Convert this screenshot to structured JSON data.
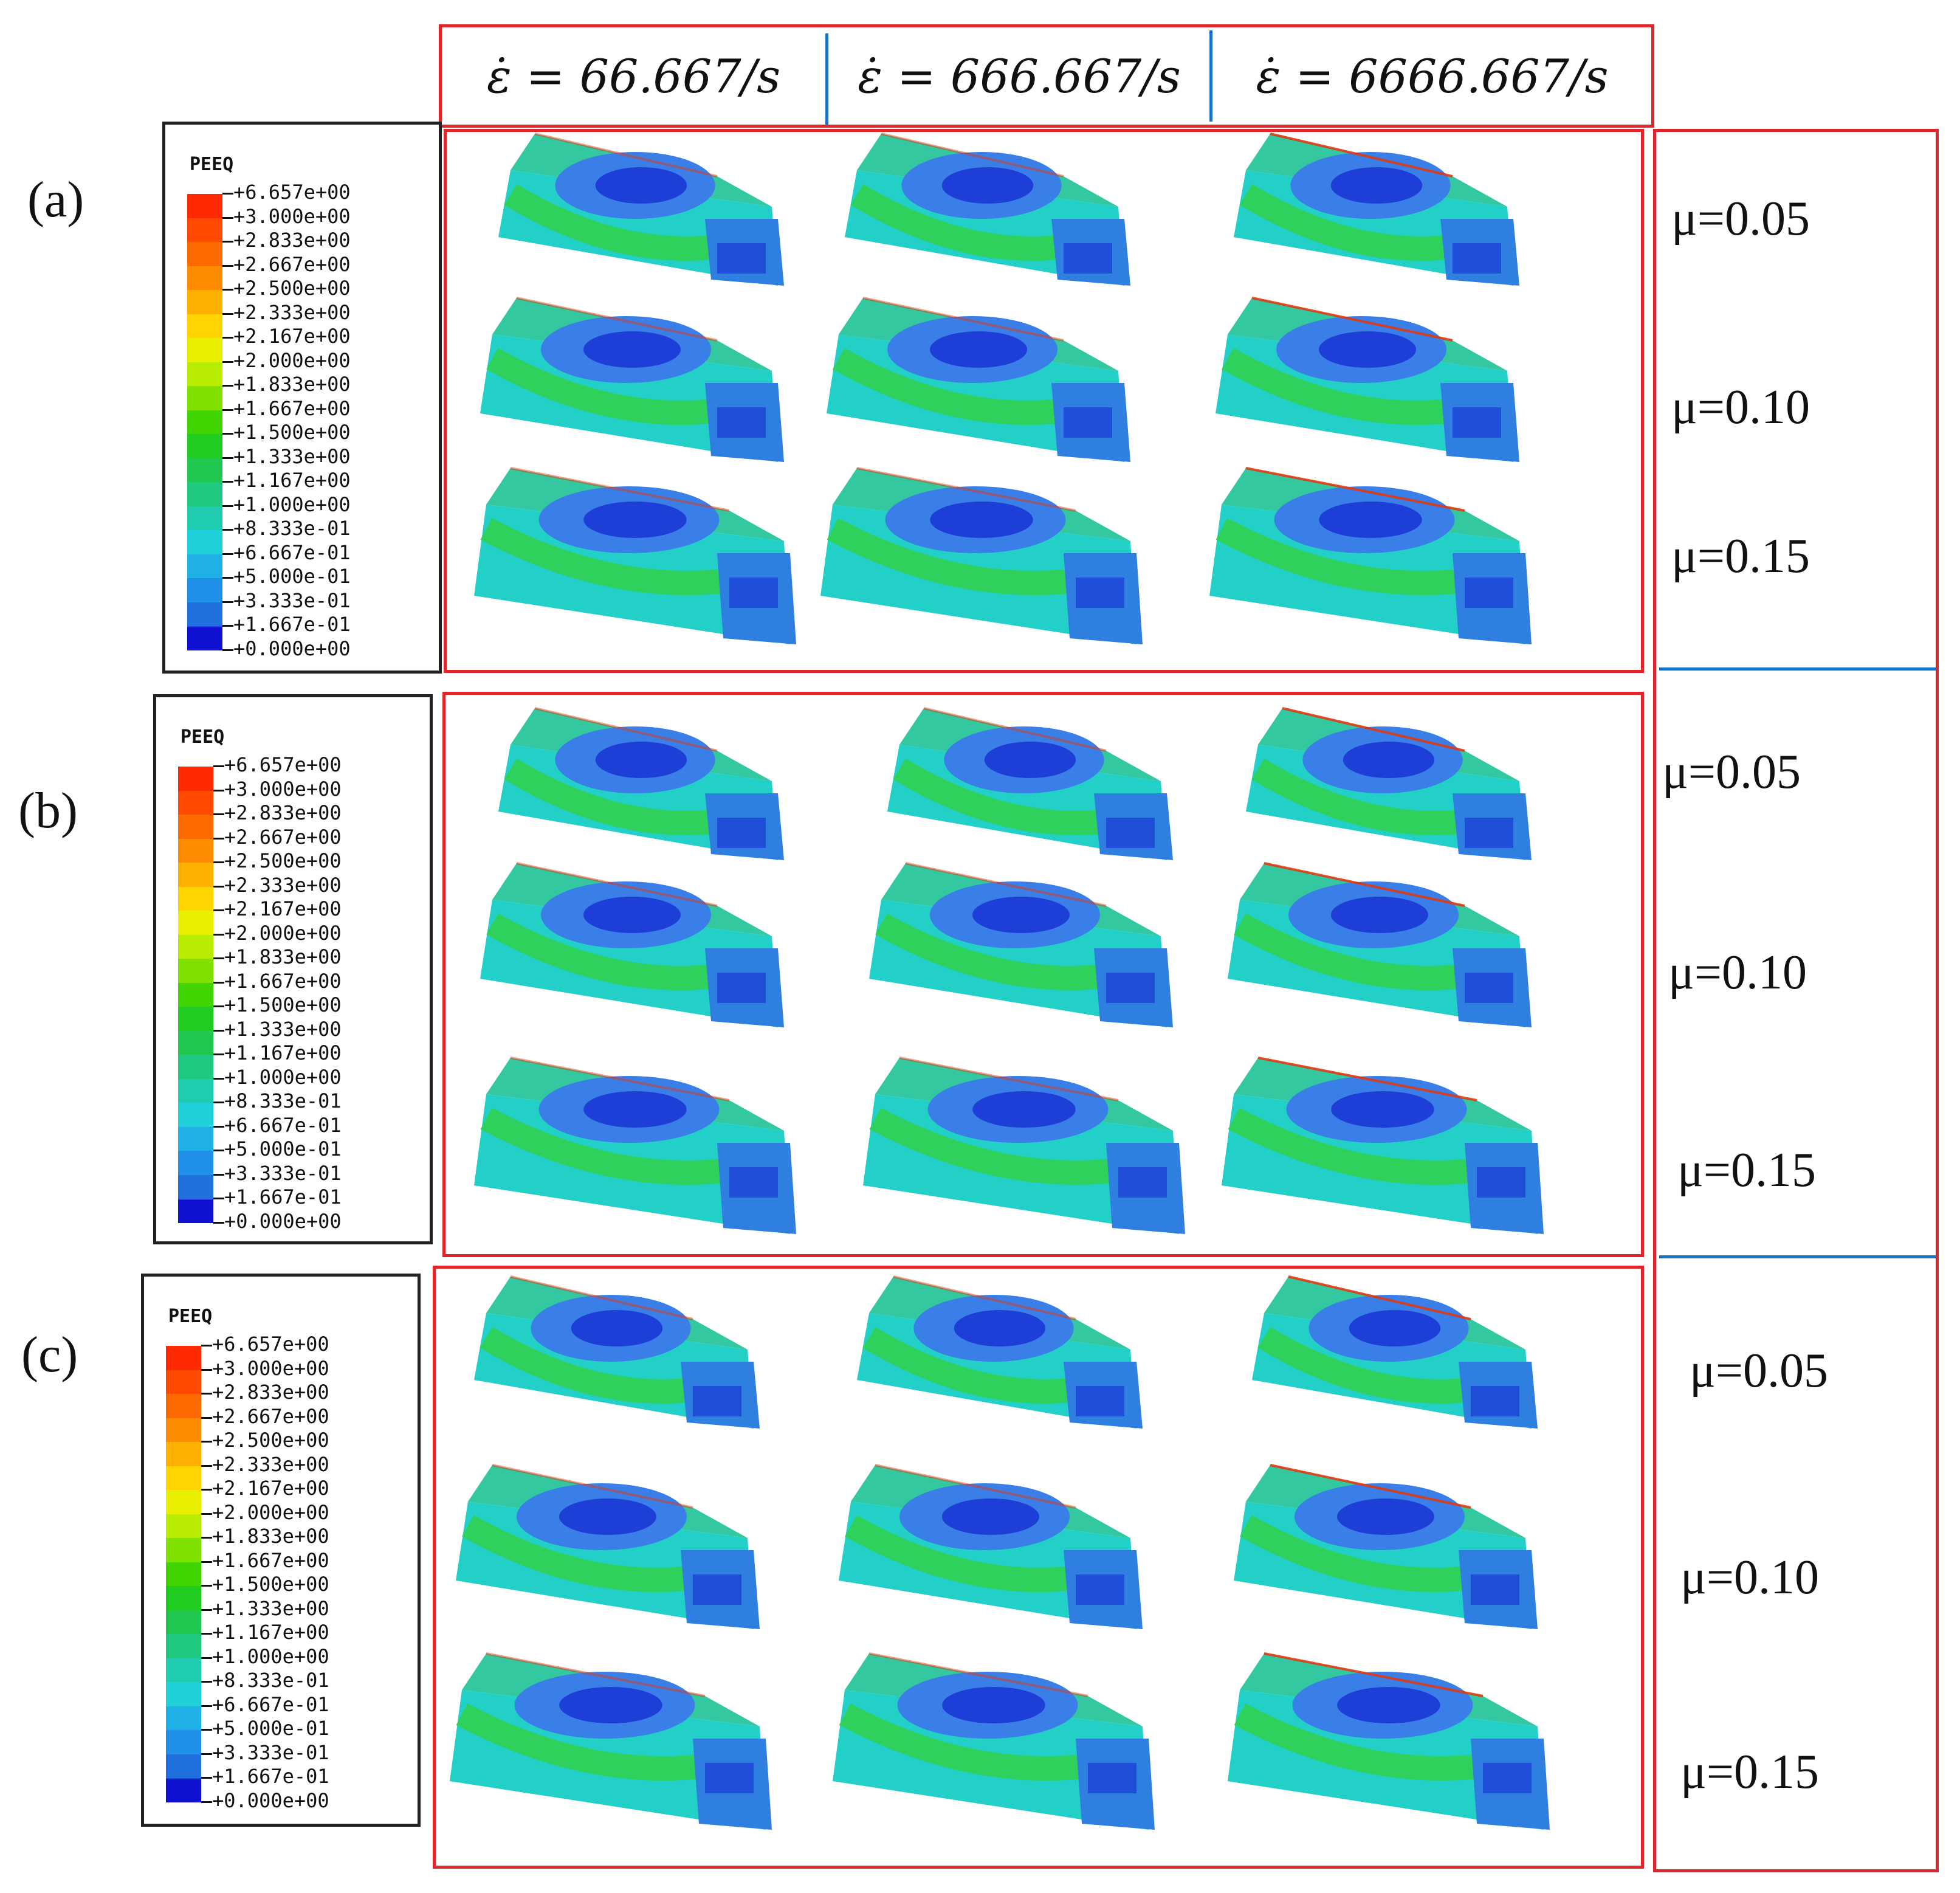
{
  "header": {
    "rates": [
      "ε̇ = 66.667/s",
      "ε̇ = 666.667/s",
      "ε̇ = 6666.667/s"
    ]
  },
  "panels": [
    {
      "label": "(a)",
      "mu": [
        "μ=0.05",
        "μ=0.10",
        "μ=0.15"
      ]
    },
    {
      "label": "(b)",
      "mu": [
        "μ=0.05",
        "μ=0.10",
        "μ=0.15"
      ]
    },
    {
      "label": "(c)",
      "mu": [
        "μ=0.05",
        "μ=0.10",
        "μ=0.15"
      ]
    }
  ],
  "legend": {
    "title": "PEEQ",
    "values": [
      "+6.657e+00",
      "+3.000e+00",
      "+2.833e+00",
      "+2.667e+00",
      "+2.500e+00",
      "+2.333e+00",
      "+2.167e+00",
      "+2.000e+00",
      "+1.833e+00",
      "+1.667e+00",
      "+1.500e+00",
      "+1.333e+00",
      "+1.167e+00",
      "+1.000e+00",
      "+8.333e-01",
      "+6.667e-01",
      "+5.000e-01",
      "+3.333e-01",
      "+1.667e-01",
      "+0.000e+00"
    ],
    "colors": [
      "#ff2a00",
      "#ff4a00",
      "#ff6a00",
      "#ff8c00",
      "#ffb000",
      "#ffd400",
      "#e8f000",
      "#b8ec00",
      "#80e000",
      "#40d400",
      "#20cc20",
      "#20c850",
      "#20c880",
      "#20ccb0",
      "#20d0d8",
      "#20b0e8",
      "#2090e8",
      "#2070e0",
      "#2040d8",
      "#1010d0"
    ]
  }
}
